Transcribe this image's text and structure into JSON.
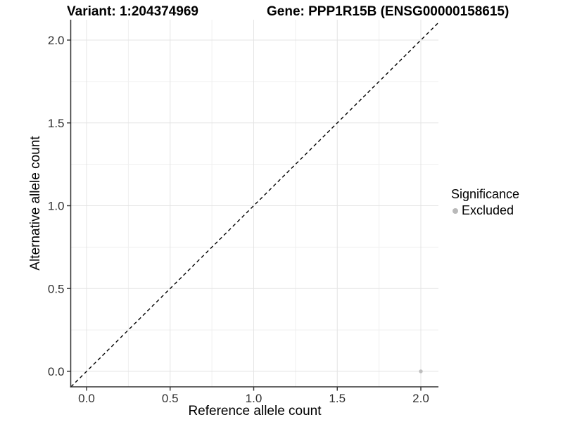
{
  "header": {
    "variant_title": "Variant: 1:204374969",
    "gene_title": "Gene: PPP1R15B (ENSG00000158615)"
  },
  "chart_data": {
    "type": "scatter",
    "xlabel": "Reference allele count",
    "ylabel": "Alternative allele count",
    "xlim": [
      -0.095,
      2.105
    ],
    "ylim": [
      -0.095,
      2.12
    ],
    "x_ticks": {
      "values": [
        0,
        0.5,
        1,
        1.5,
        2
      ],
      "labels": [
        "0.0",
        "0.5",
        "1.0",
        "1.5",
        "2.0"
      ]
    },
    "y_ticks": {
      "values": [
        0,
        0.5,
        1,
        1.5,
        2
      ],
      "labels": [
        "0.0",
        "0.5",
        "1.0",
        "1.5",
        "2.0"
      ]
    },
    "minor_ticks": [
      0.25,
      0.75,
      1.25,
      1.75
    ],
    "grid": true,
    "reference_line": {
      "type": "identity",
      "equation": "y = x",
      "style": "dashed",
      "color": "#000000"
    },
    "series": [
      {
        "name": "Excluded",
        "color": "#bebebe",
        "points": [
          {
            "x": 2.0,
            "y": 0.0
          }
        ]
      }
    ],
    "legend": {
      "title": "Significance",
      "position": "right",
      "entries": [
        {
          "label": "Excluded",
          "color": "#b9b9b9"
        }
      ]
    }
  },
  "colors": {
    "background": "#ffffff",
    "grid_major": "#e4e4e4",
    "grid_minor": "#efefef",
    "axis_line": "#333333",
    "tick_mark": "#333333",
    "tick_label": "#303030",
    "title_text": "#000000"
  }
}
